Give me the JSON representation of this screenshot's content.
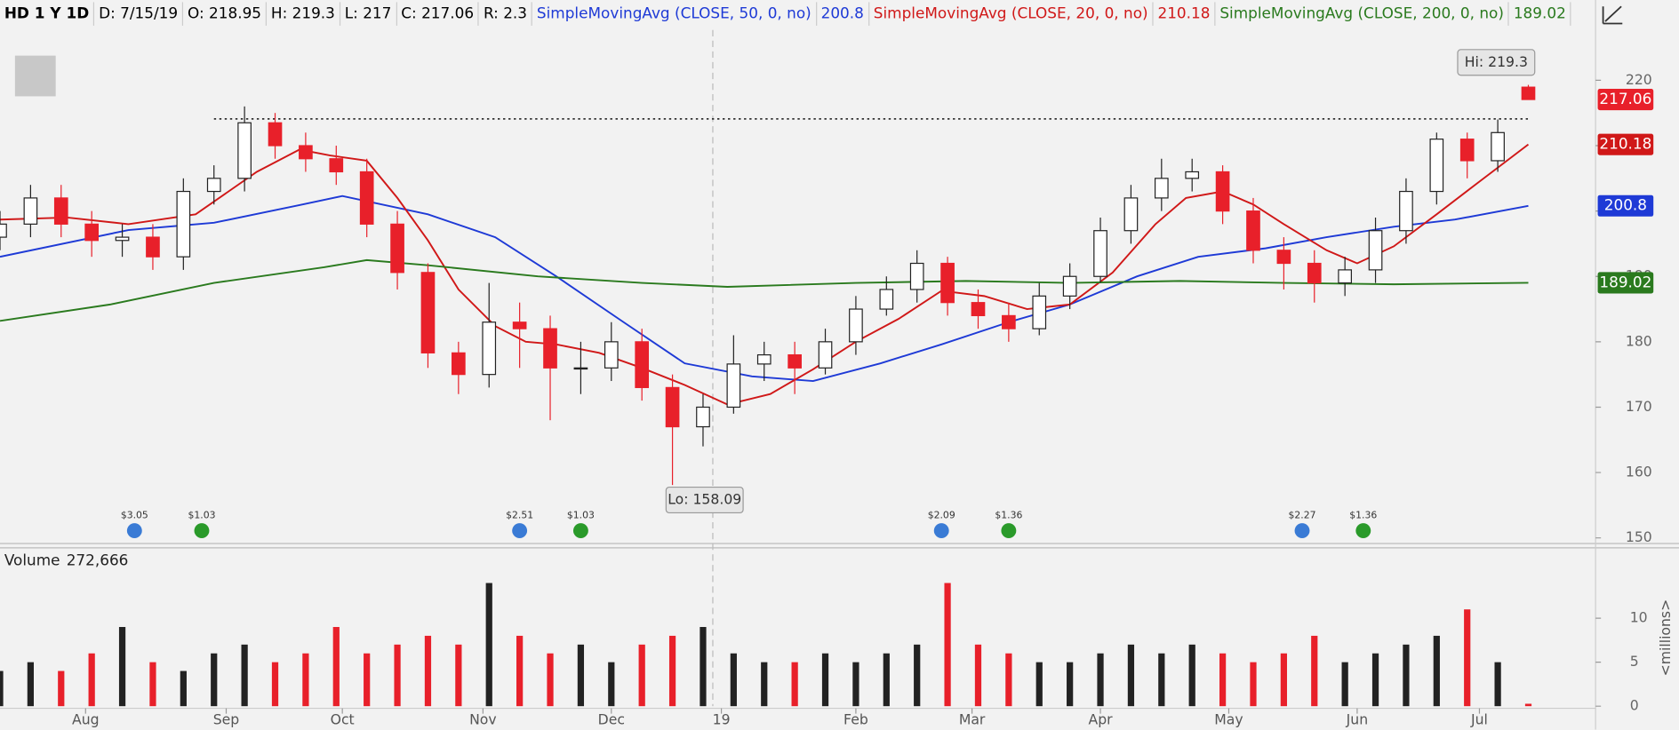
{
  "chart_data": [
    {
      "type": "candlestick",
      "title": "HD 1 Y 1D",
      "header": [
        "D: 7/15/19",
        "O: 218.95",
        "H: 219.3",
        "L: 217",
        "C: 217.06",
        "R: 2.3"
      ],
      "x": [
        0,
        5,
        10,
        15,
        20,
        25,
        30,
        35,
        40,
        45,
        50,
        55,
        60,
        65,
        70,
        75,
        80,
        85,
        90,
        95,
        100,
        105,
        110,
        115,
        120,
        125,
        130,
        135,
        140,
        145,
        150,
        155,
        160,
        165,
        170,
        175,
        180,
        185,
        190,
        195,
        200,
        205,
        210,
        215,
        220,
        225,
        230,
        235,
        240,
        245,
        250
      ],
      "open": [
        196,
        198,
        202,
        198,
        195.5,
        196,
        193,
        203,
        205,
        213.5,
        210,
        208,
        206,
        198,
        190.6,
        178.3,
        175,
        183,
        182,
        176,
        176,
        180,
        173,
        167,
        170,
        176.6,
        178,
        176,
        180,
        185,
        188,
        192,
        186,
        184,
        182,
        187,
        190,
        197,
        202,
        205,
        206,
        200,
        194,
        192,
        189,
        191,
        197,
        203,
        211,
        207.7,
        218.95
      ],
      "high": [
        200,
        204,
        204,
        200,
        198,
        198,
        205,
        207,
        216,
        215,
        212,
        210,
        208,
        200,
        192,
        180,
        189,
        186,
        184,
        180,
        183,
        182,
        175,
        172,
        181,
        180,
        180,
        182,
        187,
        190,
        194,
        193,
        188,
        186,
        189,
        192,
        199,
        204,
        208,
        208,
        207,
        202,
        196,
        194,
        193,
        199,
        205,
        212,
        212,
        214,
        219.3
      ],
      "low": [
        194,
        196,
        196,
        193,
        193,
        191,
        191,
        201,
        203,
        208,
        206,
        204,
        196,
        188,
        176,
        172,
        173,
        176,
        168,
        172,
        174,
        171,
        158.09,
        164,
        169,
        174,
        172,
        175,
        178,
        184,
        186,
        184,
        182,
        180,
        181,
        185,
        189,
        195,
        200,
        203,
        198,
        192,
        188,
        186,
        187,
        189,
        195,
        201,
        205,
        206,
        217
      ],
      "close": [
        198,
        202,
        198,
        195.5,
        196,
        193,
        203,
        205,
        213.5,
        210,
        208,
        206,
        198,
        190.6,
        178.3,
        175,
        183,
        182,
        176,
        176,
        180,
        173,
        167,
        170,
        176.6,
        178,
        176,
        180,
        185,
        188,
        192,
        186,
        184,
        182,
        187,
        190,
        197,
        202,
        205,
        206,
        200,
        194,
        192,
        189,
        191,
        197,
        203,
        211,
        207.7,
        212,
        217.06
      ],
      "up_color": "#ffffff",
      "down_color": "#e8202a",
      "series": [
        {
          "name": "SimpleMovingAvg (CLOSE, 50, 0, no)",
          "color": "#1e3ad6",
          "x": [
            0,
            21,
            35,
            49,
            56,
            70,
            81,
            91,
            102,
            112,
            123,
            133,
            144,
            154,
            165,
            175,
            186,
            196,
            207,
            217,
            228,
            238,
            250
          ],
          "values": [
            193,
            197.1,
            198.2,
            200.9,
            202.3,
            199.5,
            196,
            190,
            183,
            176.7,
            174.7,
            174,
            176.7,
            179.6,
            183,
            185.7,
            190,
            193,
            194.3,
            196,
            197.6,
            198.7,
            200.8
          ]
        },
        {
          "name": "SimpleMovingAvg (CLOSE, 20, 0, no)",
          "color": "#d01818",
          "x": [
            0,
            11,
            21,
            32,
            42,
            49,
            54,
            60,
            65,
            70,
            75,
            81,
            86,
            91,
            98,
            105,
            112,
            119,
            126,
            133,
            140,
            147,
            154,
            161,
            168,
            175,
            182,
            189,
            194,
            200,
            205,
            210,
            217,
            222,
            228,
            235,
            242,
            250
          ],
          "values": [
            198.7,
            199,
            198,
            199.5,
            206,
            209.4,
            208.5,
            207.7,
            202,
            195.5,
            188,
            182.4,
            180,
            179.6,
            178.3,
            176,
            173.4,
            170.4,
            172,
            175.8,
            180,
            183.5,
            187.8,
            187,
            185,
            185.7,
            190.6,
            198,
            202,
            203,
            201,
            198,
            194,
            192,
            194.6,
            199.5,
            204.5,
            210.18
          ]
        },
        {
          "name": "SimpleMovingAvg (CLOSE, 200, 0, no)",
          "color": "#2a7a1e",
          "x": [
            0,
            18,
            35,
            53,
            60,
            70,
            88,
            105,
            119,
            140,
            158,
            175,
            193,
            210,
            228,
            250
          ],
          "values": [
            183.2,
            185.7,
            189,
            191.4,
            192.5,
            191.7,
            190,
            189,
            188.4,
            189,
            189.3,
            189,
            189.3,
            189,
            188.8,
            189.02
          ]
        }
      ],
      "xlim": [
        0,
        261
      ],
      "xticks": [
        {
          "value": 14,
          "label": "Aug"
        },
        {
          "value": 37,
          "label": "Sep"
        },
        {
          "value": 56,
          "label": "Oct"
        },
        {
          "value": 79,
          "label": "Nov"
        },
        {
          "value": 100,
          "label": "Dec"
        },
        {
          "value": 118,
          "label": "19"
        },
        {
          "value": 140,
          "label": "Feb"
        },
        {
          "value": 159,
          "label": "Mar"
        },
        {
          "value": 180,
          "label": "Apr"
        },
        {
          "value": 201,
          "label": "May"
        },
        {
          "value": 222,
          "label": "Jun"
        },
        {
          "value": 242,
          "label": "Jul"
        }
      ],
      "ylim": [
        149.3,
        227.7
      ],
      "yticks": [
        150,
        160,
        170,
        180,
        190,
        200,
        210,
        220
      ],
      "resistance": {
        "value": 214.1,
        "x": [
          35,
          250
        ]
      },
      "annotations": {
        "hi": "Hi: 219.3",
        "lo": "Lo: 158.09"
      },
      "events": [
        {
          "label": "$3.05",
          "x": 22,
          "color": "#3a7bd5"
        },
        {
          "label": "$1.03",
          "x": 33,
          "color": "#2a9a2a"
        },
        {
          "label": "$2.51",
          "x": 85,
          "color": "#3a7bd5"
        },
        {
          "label": "$1.03",
          "x": 95,
          "color": "#2a9a2a"
        },
        {
          "label": "$2.09",
          "x": 154,
          "color": "#3a7bd5"
        },
        {
          "label": "$1.36",
          "x": 165,
          "color": "#2a9a2a"
        },
        {
          "label": "$2.27",
          "x": 213,
          "color": "#3a7bd5"
        },
        {
          "label": "$1.36",
          "x": 223,
          "color": "#2a9a2a"
        }
      ]
    },
    {
      "type": "bar",
      "title": "Volume",
      "last_label": "272,666",
      "axis_label": "<millions>",
      "values": [
        4,
        5,
        4,
        6,
        9,
        5,
        4,
        6,
        7,
        5,
        6,
        9,
        6,
        7,
        8,
        7,
        14,
        8,
        6,
        7,
        5,
        7,
        8,
        9,
        6,
        5,
        5,
        6,
        5,
        6,
        7,
        14,
        7,
        6,
        5,
        5,
        6,
        7,
        6,
        7,
        6,
        5,
        6,
        8,
        5,
        6,
        7,
        8,
        11,
        5,
        0.272666
      ],
      "ylim": [
        0,
        18
      ],
      "yticks": [
        0,
        5,
        10
      ]
    }
  ]
}
